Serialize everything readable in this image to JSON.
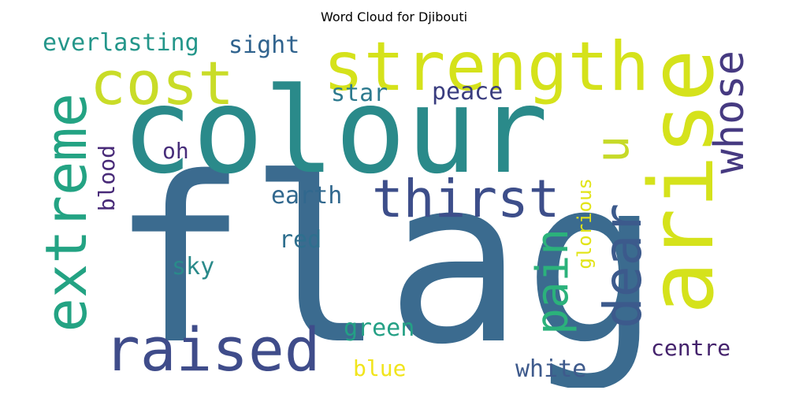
{
  "title": "Word Cloud for Djibouti",
  "words": [
    {
      "text": "flag",
      "color": "#3b6b8f"
    },
    {
      "text": "colour",
      "color": "#2a8a8a"
    },
    {
      "text": "strength",
      "color": "#d5e21b"
    },
    {
      "text": "arise",
      "color": "#d5e21b"
    },
    {
      "text": "cost",
      "color": "#c9dc28"
    },
    {
      "text": "raised",
      "color": "#3f4c8a"
    },
    {
      "text": "extreme",
      "color": "#23a383"
    },
    {
      "text": "dear",
      "color": "#3c5a8c"
    },
    {
      "text": "thirst",
      "color": "#3d4e8a"
    },
    {
      "text": "whose",
      "color": "#463a81"
    },
    {
      "text": "pain",
      "color": "#2bb27b"
    },
    {
      "text": "u",
      "color": "#c6da28"
    },
    {
      "text": "everlasting",
      "color": "#24968a"
    },
    {
      "text": "sight",
      "color": "#30638e"
    },
    {
      "text": "star",
      "color": "#2d7a8e"
    },
    {
      "text": "peace",
      "color": "#3a3d7f"
    },
    {
      "text": "oh",
      "color": "#472d7a"
    },
    {
      "text": "blood",
      "color": "#482a78"
    },
    {
      "text": "earth",
      "color": "#31688e"
    },
    {
      "text": "red",
      "color": "#2e6f8e"
    },
    {
      "text": "sky",
      "color": "#2a8a8a"
    },
    {
      "text": "glorious",
      "color": "#e2e418"
    },
    {
      "text": "green",
      "color": "#24a085"
    },
    {
      "text": "blue",
      "color": "#f1e51d"
    },
    {
      "text": "white",
      "color": "#3e5a8c"
    },
    {
      "text": "centre",
      "color": "#44226c"
    }
  ]
}
